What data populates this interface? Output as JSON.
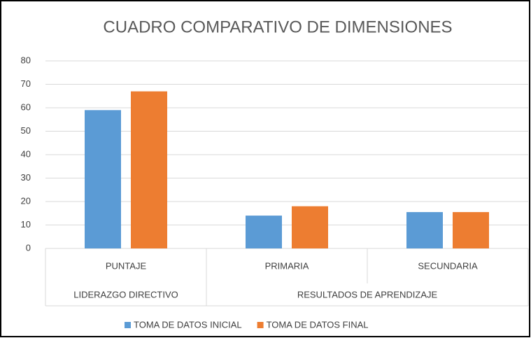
{
  "chart_data": {
    "type": "bar",
    "title": "CUADRO COMPARATIVO DE DIMENSIONES",
    "category_groups": [
      {
        "label": "LIDERAZGO DIRECTIVO",
        "categories": [
          "PUNTAJE"
        ]
      },
      {
        "label": "RESULTADOS DE APRENDIZAJE",
        "categories": [
          "PRIMARIA",
          "SECUNDARIA"
        ]
      }
    ],
    "series": [
      {
        "name": "TOMA DE DATOS INICIAL",
        "color": "#5b9bd5",
        "values": [
          59,
          14,
          15.5
        ]
      },
      {
        "name": "TOMA DE DATOS FINAL",
        "color": "#ed7d31",
        "values": [
          67,
          18,
          15.5
        ]
      }
    ],
    "ylim": [
      0,
      80
    ],
    "yticks": [
      0,
      10,
      20,
      30,
      40,
      50,
      60,
      70,
      80
    ],
    "grid": true,
    "legend": "bottom"
  }
}
